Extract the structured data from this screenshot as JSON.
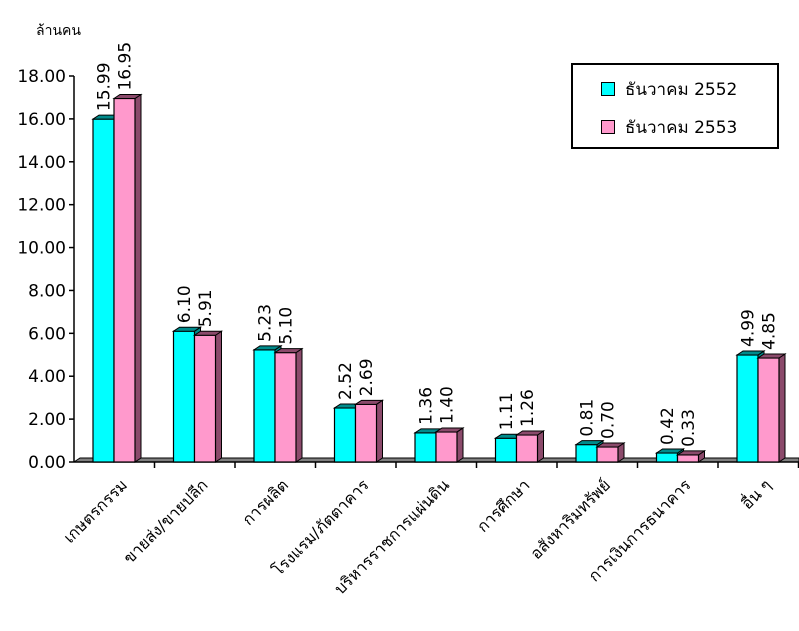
{
  "chart_data": {
    "type": "bar",
    "ylabel": "ล้านคน",
    "ylim": [
      0,
      18
    ],
    "yticks": [
      "0.00",
      "2.00",
      "4.00",
      "6.00",
      "8.00",
      "10.00",
      "12.00",
      "14.00",
      "16.00",
      "18.00"
    ],
    "categories": [
      "เกษตรกรรม",
      "ขายส่ง/ขายปลีก",
      "การผลิต",
      "โรงแรม/ภัตตาคาร",
      "บริหารราชการแผ่นดิน",
      "การศึกษา",
      "อสังหาริมทรัพย์",
      "การเงินการธนาคาร",
      "อื่น ๆ"
    ],
    "series": [
      {
        "name": "ธันวาคม 2552",
        "color": "#00ffff",
        "side": "#008b8b",
        "labels": [
          "15.99",
          "6.10",
          "5.23",
          "2.52",
          "1.36",
          "1.11",
          "0.81",
          "0.42",
          "4.99"
        ],
        "values": [
          15.99,
          6.1,
          5.23,
          2.52,
          1.36,
          1.11,
          0.81,
          0.42,
          4.99
        ]
      },
      {
        "name": "ธันวาคม 2553",
        "color": "#ff99cc",
        "side": "#8b4a6b",
        "labels": [
          "16.95",
          "5.91",
          "5.10",
          "2.69",
          "1.40",
          "1.26",
          "0.70",
          "0.33",
          "4.85"
        ],
        "values": [
          16.95,
          5.91,
          5.1,
          2.69,
          1.4,
          1.26,
          0.7,
          0.33,
          4.85
        ]
      }
    ],
    "legend_position": "top-right",
    "grid": false
  }
}
